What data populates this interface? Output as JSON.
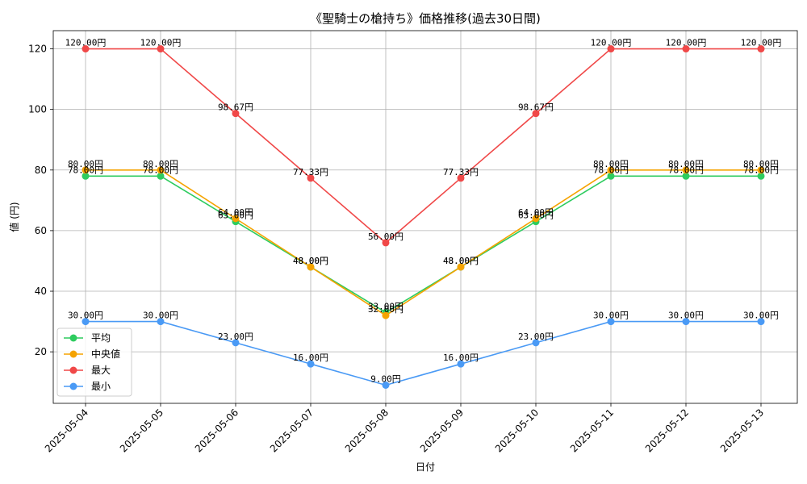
{
  "chart_data": {
    "type": "line",
    "title": "《聖騎士の槍持ち》価格推移(過去30日間)",
    "xlabel": "日付",
    "ylabel": "値 (円)",
    "ylim": [
      3,
      126
    ],
    "yticks": [
      20,
      40,
      60,
      80,
      100,
      120
    ],
    "grid": true,
    "legend_position": "lower-left",
    "label_suffix": "円",
    "categories": [
      "2025-05-04",
      "2025-05-05",
      "2025-05-06",
      "2025-05-07",
      "2025-05-08",
      "2025-05-09",
      "2025-05-10",
      "2025-05-11",
      "2025-05-12",
      "2025-05-13"
    ],
    "series": [
      {
        "name": "平均",
        "color": "#2ecc5f",
        "values": [
          78.0,
          78.0,
          63.0,
          48.0,
          33.0,
          48.0,
          63.0,
          78.0,
          78.0,
          78.0
        ]
      },
      {
        "name": "中央値",
        "color": "#f5a300",
        "values": [
          80.0,
          80.0,
          64.0,
          48.0,
          32.0,
          48.0,
          64.0,
          80.0,
          80.0,
          80.0
        ]
      },
      {
        "name": "最大",
        "color": "#f04848",
        "values": [
          120.0,
          120.0,
          98.67,
          77.33,
          56.0,
          77.33,
          98.67,
          120.0,
          120.0,
          120.0
        ]
      },
      {
        "name": "最小",
        "color": "#4a9af5",
        "values": [
          30.0,
          30.0,
          23.0,
          16.0,
          9.0,
          16.0,
          23.0,
          30.0,
          30.0,
          30.0
        ]
      }
    ]
  }
}
